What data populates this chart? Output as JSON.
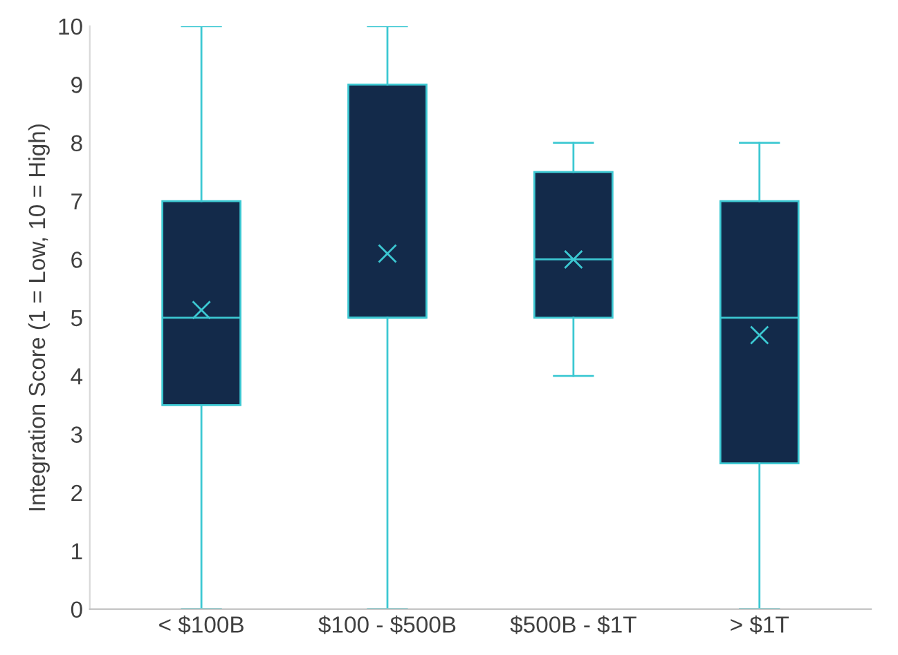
{
  "chart_data": {
    "type": "box",
    "ylabel": "Integration Score (1 = Low, 10 = High)",
    "categories": [
      "< $100B",
      "$100 - $500B",
      "$500B - $1T",
      "> $1T"
    ],
    "boxes": [
      {
        "low": 0,
        "q1": 3.5,
        "median": 5,
        "q3": 7,
        "high": 10,
        "mean": 5.13
      },
      {
        "low": 0,
        "q1": 5,
        "median": 5,
        "q3": 9,
        "high": 10,
        "mean": 6.1
      },
      {
        "low": 4,
        "q1": 5,
        "median": 6,
        "q3": 7.5,
        "high": 8,
        "mean": 6.0
      },
      {
        "low": 0,
        "q1": 2.5,
        "median": 5,
        "q3": 7,
        "high": 8,
        "mean": 4.7
      }
    ],
    "color": "#132a4a",
    "ylim": [
      0,
      10
    ],
    "yticks": [
      0,
      1,
      2,
      3,
      4,
      5,
      6,
      7,
      8,
      9,
      10
    ],
    "grid": false,
    "legend": false,
    "marker": "cross"
  }
}
